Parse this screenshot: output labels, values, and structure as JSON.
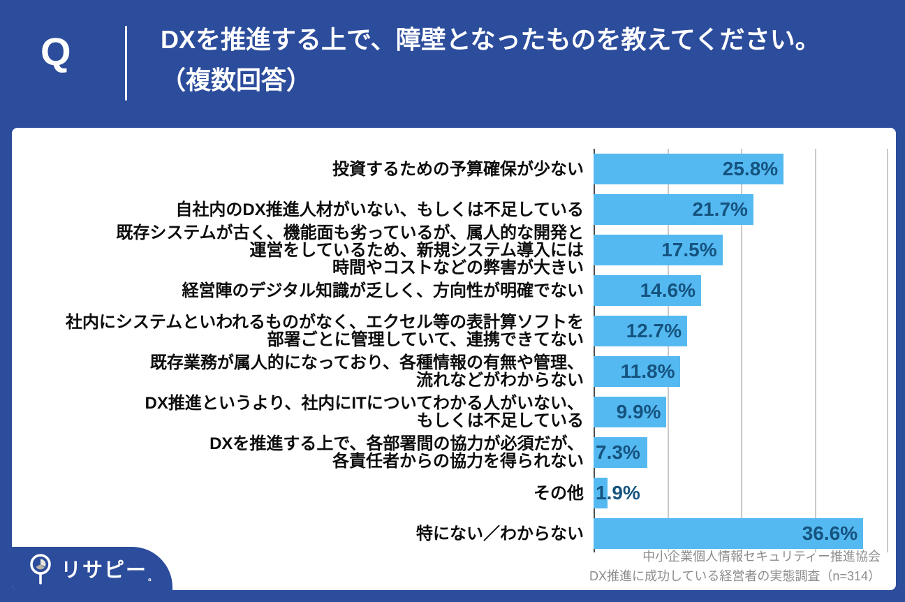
{
  "header": {
    "q_label": "Q",
    "title_line1": "DXを推進する上で、障壁となったものを教えてください。",
    "title_line2": "（複数回答）"
  },
  "chart_data": {
    "type": "bar",
    "orientation": "horizontal",
    "title": "DXを推進する上で、障壁となったものを教えてください。（複数回答）",
    "categories": [
      [
        "投資するための予算確保が少ない"
      ],
      [
        "自社内のDX推進人材がいない、もしくは不足している"
      ],
      [
        "既存システムが古く、機能面も劣っているが、属人的な開発と",
        "運営をしているため、新規システム導入には",
        "時間やコストなどの弊害が大きい"
      ],
      [
        "経営陣のデジタル知識が乏しく、方向性が明確でない"
      ],
      [
        "社内にシステムといわれるものがなく、エクセル等の表計算ソフトを",
        "部署ごとに管理していて、連携できてない"
      ],
      [
        "既存業務が属人的になっており、各種情報の有無や管理、",
        "流れなどがわからない"
      ],
      [
        "DX推進というより、社内にITについてわかる人がいない、",
        "もしくは不足している"
      ],
      [
        "DXを推進する上で、各部署間の協力が必須だが、",
        "各責任者からの協力を得られない"
      ],
      [
        "その他"
      ],
      [
        "特にない／わからない"
      ]
    ],
    "values": [
      25.8,
      21.7,
      17.5,
      14.6,
      12.7,
      11.8,
      9.9,
      7.3,
      1.9,
      36.6
    ],
    "value_labels": [
      "25.8%",
      "21.7%",
      "17.5%",
      "14.6%",
      "12.7%",
      "11.8%",
      "9.9%",
      "7.3%",
      "1.9%",
      "36.6%"
    ],
    "xlim": [
      0,
      40
    ],
    "gridline_interval": 10,
    "grid": true,
    "legend_position": "none",
    "bar_color": "#55b9f1",
    "value_text_color": "#15537f"
  },
  "footer": {
    "logo_icon": "magnifier-pie-icon",
    "logo_text": "リサピー",
    "logo_mark": "。",
    "source_line1": "中小企業個人情報セキュリティー推進協会",
    "source_line2": "DX推進に成功している経営者の実態調査（n=314）"
  },
  "colors": {
    "background": "#2c4c9c",
    "card": "#ffffff",
    "bar": "#55b9f1",
    "value_text": "#15537f",
    "label_text": "#0d0d0d",
    "gridline": "#c9c9c9",
    "axis": "#4d4d4d",
    "source_text": "#8c8c8c"
  }
}
